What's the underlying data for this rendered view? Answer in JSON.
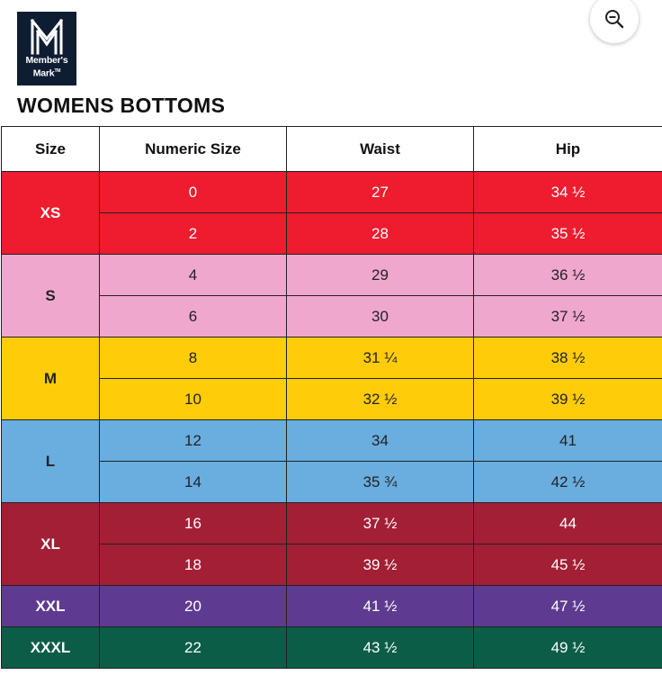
{
  "logo": {
    "line1": "Member's",
    "line2": "Mark",
    "tm": "TM"
  },
  "title": "WOMENS BOTTOMS",
  "table": {
    "headers": [
      "Size",
      "Numeric Size",
      "Waist",
      "Hip"
    ],
    "groups": [
      {
        "size": "XS",
        "color": "#ee1c2e",
        "text_color": "#ffffff",
        "rows": [
          {
            "numeric": "0",
            "waist": "27",
            "hip": "34 ½"
          },
          {
            "numeric": "2",
            "waist": "28",
            "hip": "35 ½"
          }
        ]
      },
      {
        "size": "S",
        "color": "#f0a7ce",
        "text_color": "#222222",
        "rows": [
          {
            "numeric": "4",
            "waist": "29",
            "hip": "36 ½"
          },
          {
            "numeric": "6",
            "waist": "30",
            "hip": "37 ½"
          }
        ]
      },
      {
        "size": "M",
        "color": "#ffcc0a",
        "text_color": "#222222",
        "rows": [
          {
            "numeric": "8",
            "waist": "31 ¼",
            "hip": "38 ½"
          },
          {
            "numeric": "10",
            "waist": "32 ½",
            "hip": "39 ½"
          }
        ]
      },
      {
        "size": "L",
        "color": "#6aaddf",
        "text_color": "#222222",
        "rows": [
          {
            "numeric": "12",
            "waist": "34",
            "hip": "41"
          },
          {
            "numeric": "14",
            "waist": "35 ¾",
            "hip": "42 ½"
          }
        ]
      },
      {
        "size": "XL",
        "color": "#a31f35",
        "text_color": "#ffffff",
        "rows": [
          {
            "numeric": "16",
            "waist": "37 ½",
            "hip": "44"
          },
          {
            "numeric": "18",
            "waist": "39 ½",
            "hip": "45 ½"
          }
        ]
      },
      {
        "size": "XXL",
        "color": "#5e3b91",
        "text_color": "#ffffff",
        "rows": [
          {
            "numeric": "20",
            "waist": "41 ½",
            "hip": "47 ½"
          }
        ]
      },
      {
        "size": "XXXL",
        "color": "#0c5d47",
        "text_color": "#ffffff",
        "rows": [
          {
            "numeric": "22",
            "waist": "43 ½",
            "hip": "49 ½"
          }
        ]
      }
    ]
  },
  "icons": {
    "zoom": "zoom-out-icon",
    "logo": "members-mark-logo"
  }
}
